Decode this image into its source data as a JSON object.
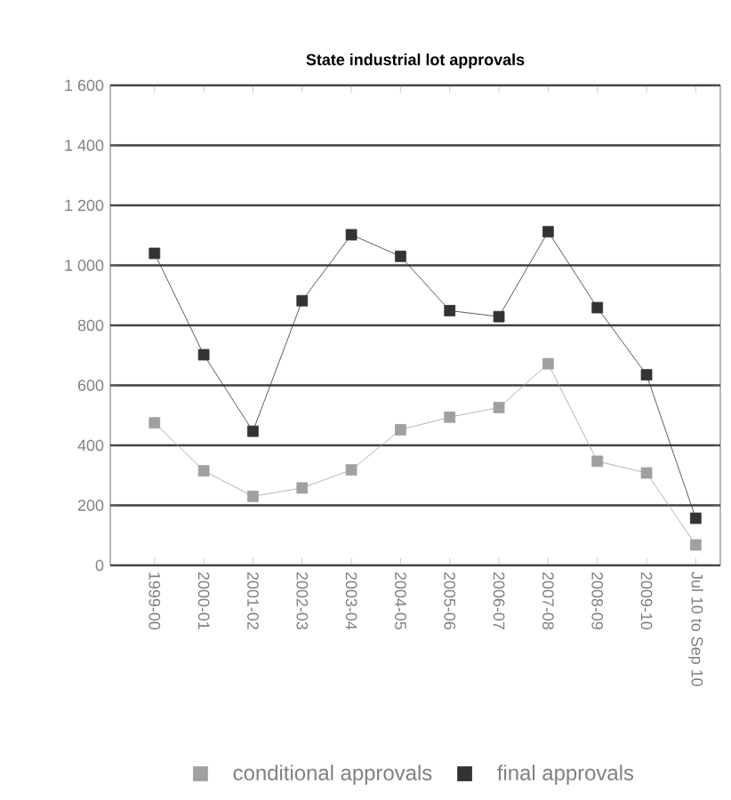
{
  "chart_data": {
    "type": "line",
    "title": "State industrial lot approvals",
    "categories": [
      "1999-00",
      "2000-01",
      "2001-02",
      "2002-03",
      "2003-04",
      "2004-05",
      "2005-06",
      "2006-07",
      "2007-08",
      "2008-09",
      "2009-10",
      "Jul 10 to Sep 10"
    ],
    "series": [
      {
        "name": "conditional approvals",
        "color": "#a0a0a0",
        "values": [
          475,
          315,
          230,
          258,
          318,
          452,
          494,
          526,
          672,
          347,
          308,
          68
        ]
      },
      {
        "name": "final approvals",
        "color": "#333333",
        "values": [
          1040,
          702,
          447,
          882,
          1102,
          1030,
          849,
          829,
          1112,
          859,
          635,
          157
        ]
      }
    ],
    "ylim": [
      0,
      1600
    ],
    "yticks": [
      0,
      200,
      400,
      600,
      800,
      {
        "value": 1000,
        "label": "1 000"
      },
      {
        "value": 1200,
        "label": "1 200"
      },
      {
        "value": 1400,
        "label": "1 400"
      },
      {
        "value": 1600,
        "label": "1 600"
      }
    ],
    "grid": "y",
    "legend": "bottom",
    "marker": "square",
    "line_style": "solid"
  }
}
